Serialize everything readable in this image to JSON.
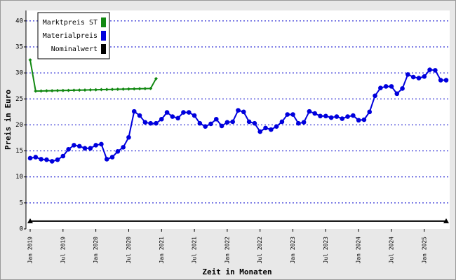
{
  "chart_data": {
    "type": "line",
    "x_label": "Zeit in Monaten",
    "y_label": "Preis in Euro",
    "categories": [
      "Jan 2019",
      null,
      null,
      null,
      null,
      null,
      "Jul 2019",
      null,
      null,
      null,
      null,
      null,
      "Jan 2020",
      null,
      null,
      null,
      null,
      null,
      "Jul 2020",
      null,
      null,
      null,
      null,
      null,
      "Jan 2021",
      null,
      null,
      null,
      null,
      null,
      "Jul 2021",
      null,
      null,
      null,
      null,
      null,
      "Jan 2022",
      null,
      null,
      null,
      null,
      null,
      "Jul 2022",
      null,
      null,
      null,
      null,
      null,
      "Jan 2023",
      null,
      null,
      null,
      null,
      null,
      "Jul 2023",
      null,
      null,
      null,
      null,
      null,
      "Jan 2024",
      null,
      null,
      null,
      null,
      null,
      "Jul 2024",
      null,
      null,
      null,
      null,
      null,
      "Jan 2025",
      null,
      null,
      null,
      null
    ],
    "series": [
      {
        "name": "Marktpreis ST",
        "color": "#118811",
        "marker": "diamond",
        "values": [
          32.5,
          26.5,
          26.52,
          26.55,
          26.57,
          26.6,
          26.62,
          26.64,
          26.67,
          26.69,
          26.71,
          26.74,
          26.76,
          26.79,
          26.81,
          26.83,
          26.86,
          26.88,
          26.9,
          26.93,
          26.95,
          26.98,
          27.0,
          28.9,
          null,
          null,
          null,
          null,
          null,
          null,
          null,
          null,
          null,
          null,
          null,
          null,
          null,
          null,
          null,
          null,
          null,
          null,
          null,
          null,
          null,
          null,
          null,
          null,
          null,
          null,
          null,
          null,
          null,
          null,
          null,
          null,
          null,
          null,
          null,
          null,
          null,
          null,
          null,
          null,
          null,
          null,
          null,
          null,
          null,
          null,
          null,
          null,
          null,
          null,
          null,
          null,
          null
        ]
      },
      {
        "name": "Materialpreis",
        "color": "#0000dd",
        "marker": "circle",
        "values": [
          13.6,
          13.8,
          13.4,
          13.3,
          13.0,
          13.3,
          14.0,
          15.3,
          16.1,
          15.9,
          15.5,
          15.5,
          16.1,
          16.3,
          13.4,
          13.8,
          14.9,
          15.7,
          17.6,
          22.6,
          21.8,
          20.5,
          20.3,
          20.3,
          21.1,
          22.4,
          21.6,
          21.3,
          22.4,
          22.4,
          21.8,
          20.3,
          19.7,
          20.2,
          21.1,
          19.8,
          20.5,
          20.6,
          22.8,
          22.5,
          20.6,
          20.3,
          18.7,
          19.4,
          19.1,
          19.7,
          20.6,
          22.0,
          22.0,
          20.3,
          20.5,
          22.6,
          22.2,
          21.7,
          21.7,
          21.4,
          21.6,
          21.2,
          21.6,
          21.8,
          20.9,
          21.0,
          22.5,
          25.6,
          27.1,
          27.4,
          27.4,
          26.0,
          27.0,
          29.7,
          29.2,
          29.0,
          29.3,
          30.6,
          30.5,
          28.6,
          28.6
        ]
      },
      {
        "name": "Nominalwert",
        "color": "#000000",
        "marker": "arrow",
        "values": [
          1.5,
          1.5,
          1.5,
          1.5,
          1.5,
          1.5,
          1.5,
          1.5,
          1.5,
          1.5,
          1.5,
          1.5,
          1.5,
          1.5,
          1.5,
          1.5,
          1.5,
          1.5,
          1.5,
          1.5,
          1.5,
          1.5,
          1.5,
          1.5,
          1.5,
          1.5,
          1.5,
          1.5,
          1.5,
          1.5,
          1.5,
          1.5,
          1.5,
          1.5,
          1.5,
          1.5,
          1.5,
          1.5,
          1.5,
          1.5,
          1.5,
          1.5,
          1.5,
          1.5,
          1.5,
          1.5,
          1.5,
          1.5,
          1.5,
          1.5,
          1.5,
          1.5,
          1.5,
          1.5,
          1.5,
          1.5,
          1.5,
          1.5,
          1.5,
          1.5,
          1.5,
          1.5,
          1.5,
          1.5,
          1.5,
          1.5,
          1.5,
          1.5,
          1.5,
          1.5,
          1.5,
          1.5,
          1.5,
          1.5,
          1.5,
          1.5,
          1.5
        ]
      }
    ],
    "ylim": [
      0,
      42
    ],
    "yticks": [
      0,
      5,
      10,
      15,
      20,
      25,
      30,
      35,
      40
    ],
    "grid": true,
    "legend": "top-left"
  }
}
